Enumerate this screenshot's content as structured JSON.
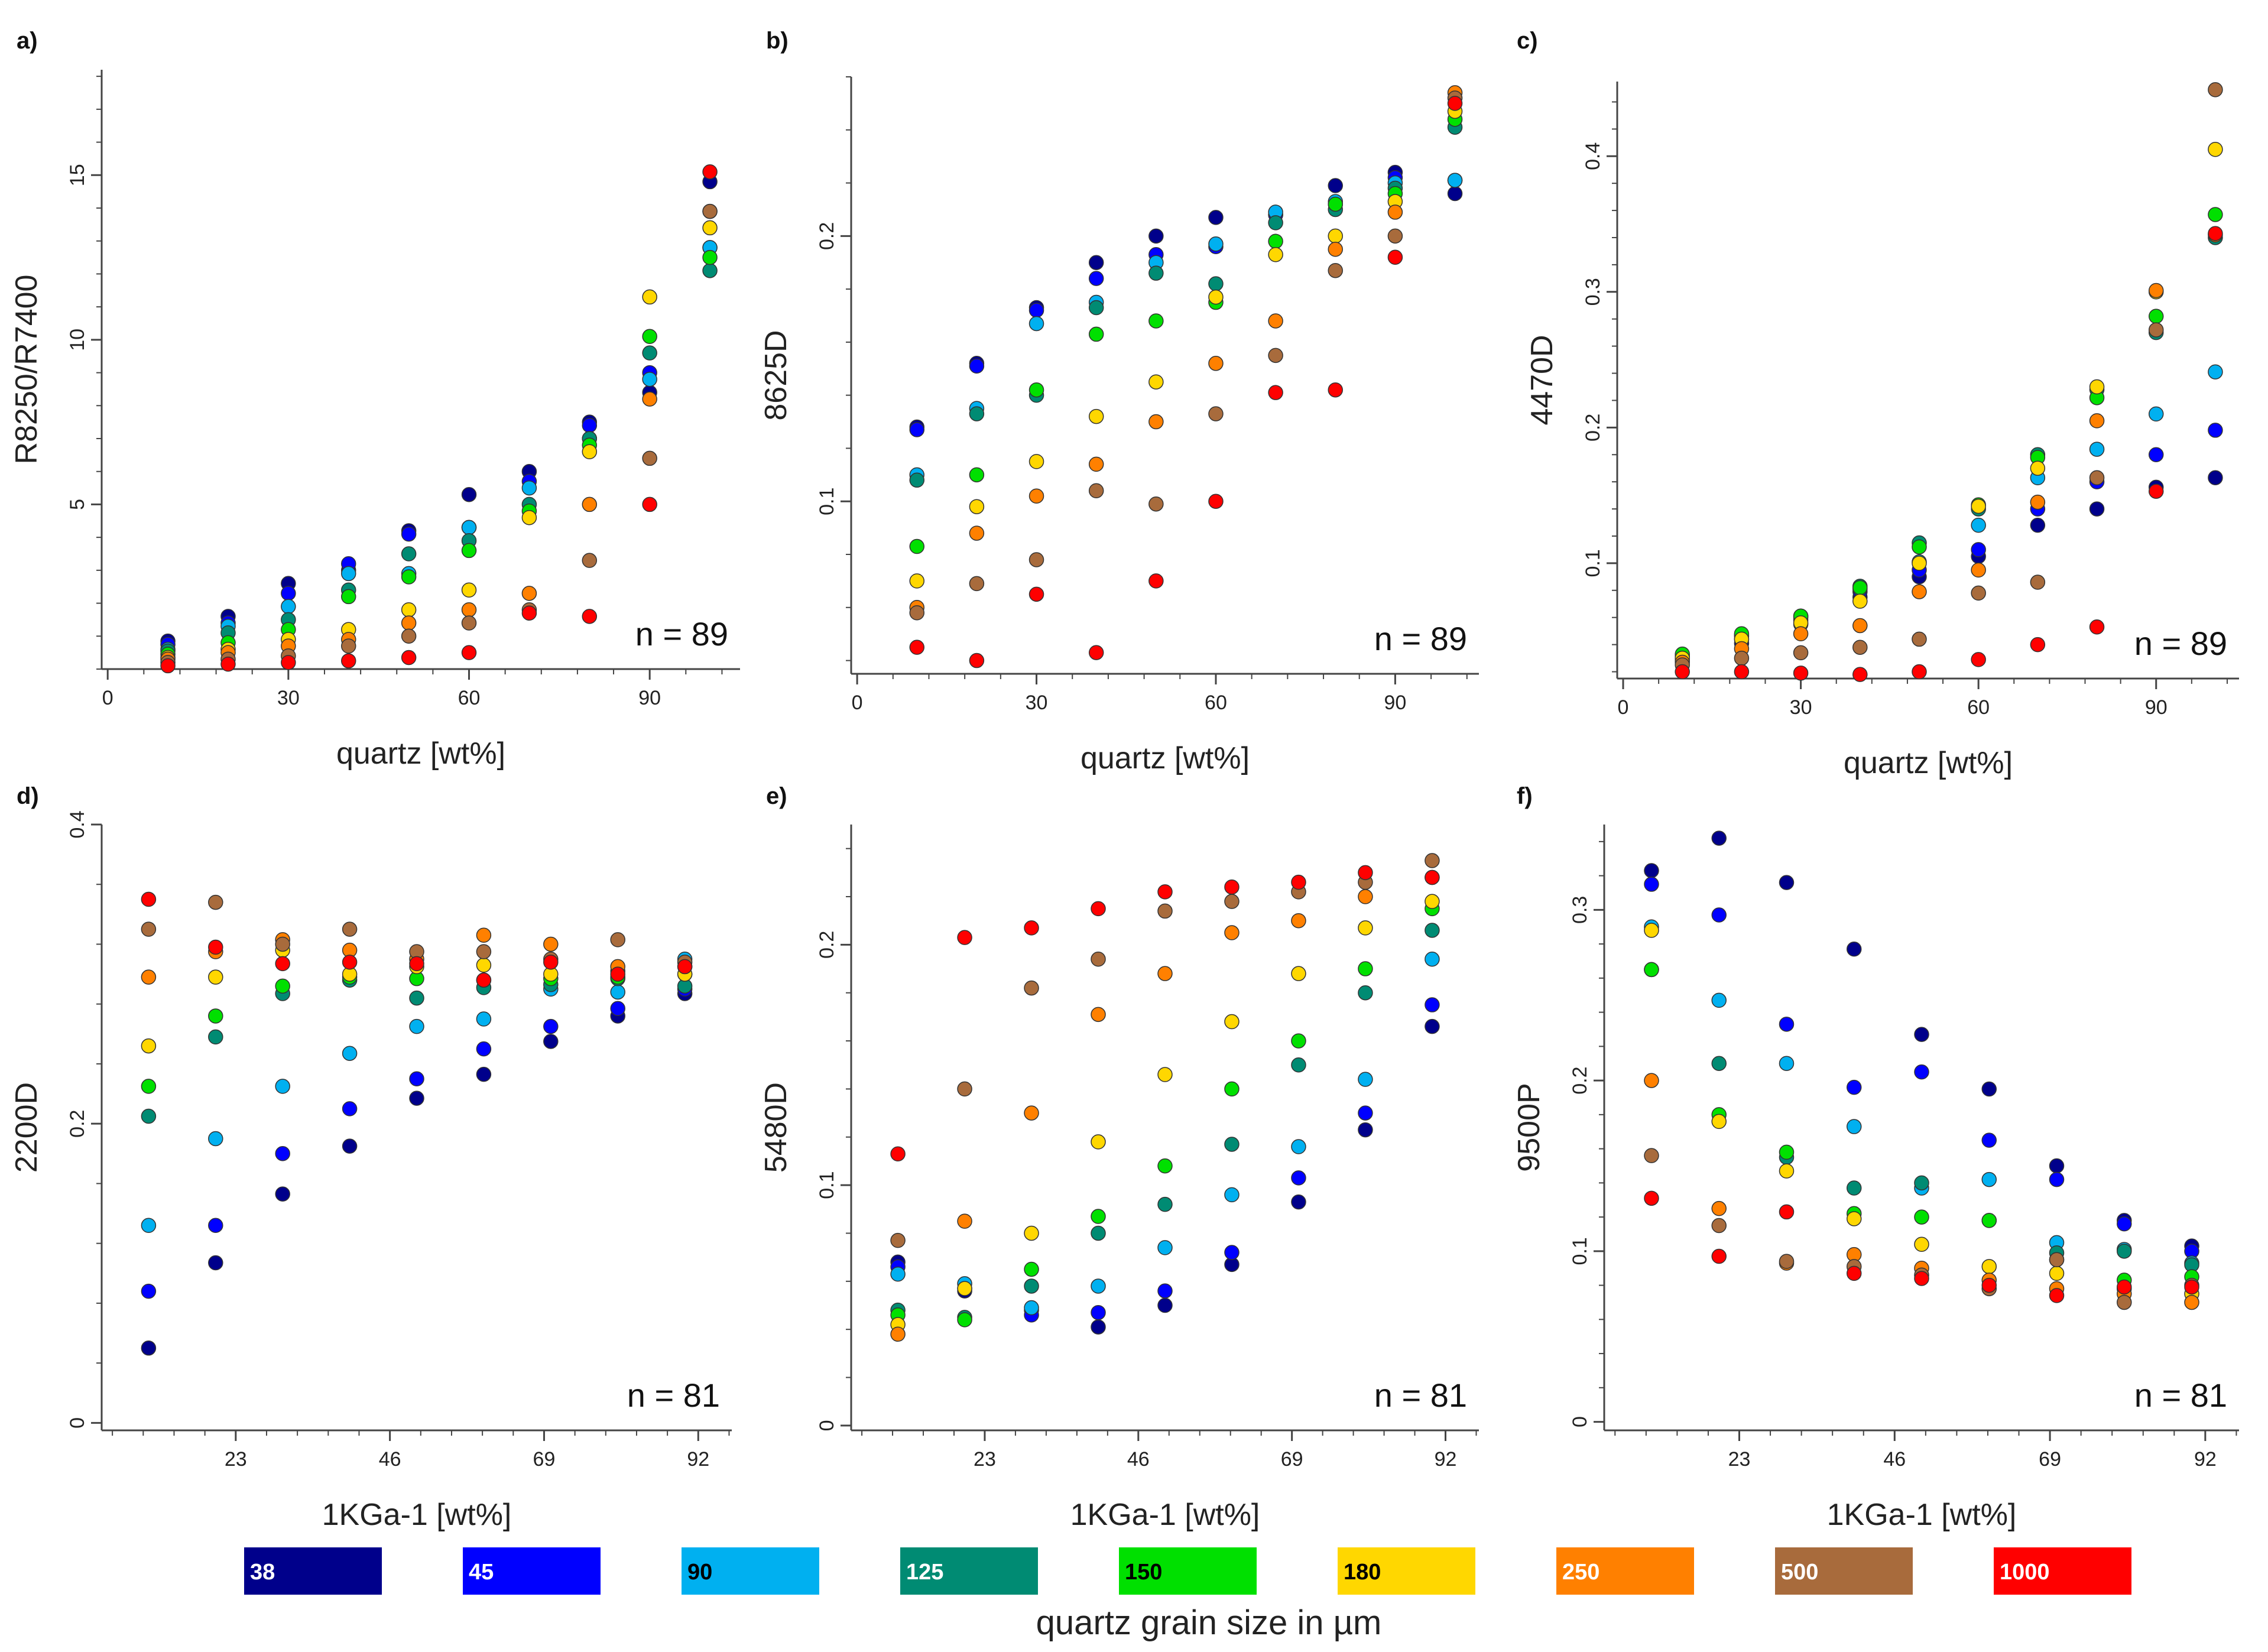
{
  "legend": {
    "title": "quartz grain size in µm",
    "items": [
      {
        "label": "38",
        "color": "#00008B",
        "text_color": "#ffffff"
      },
      {
        "label": "45",
        "color": "#0000FF",
        "text_color": "#ffffff"
      },
      {
        "label": "90",
        "color": "#00B0F0",
        "text_color": "#000000"
      },
      {
        "label": "125",
        "color": "#008B73",
        "text_color": "#ffffff"
      },
      {
        "label": "150",
        "color": "#00E000",
        "text_color": "#000000"
      },
      {
        "label": "180",
        "color": "#FFD700",
        "text_color": "#000000"
      },
      {
        "label": "250",
        "color": "#FF8000",
        "text_color": "#ffffff"
      },
      {
        "label": "500",
        "color": "#A86B3C",
        "text_color": "#ffffff"
      },
      {
        "label": "1000",
        "color": "#FF0000",
        "text_color": "#ffffff"
      }
    ]
  },
  "chart_data": [
    {
      "type": "scatter",
      "panel_label": "a)",
      "xlabel": "quartz [wt%]",
      "ylabel": "R8250/R7400",
      "annotation": "n = 89",
      "xlim": [
        -1,
        105
      ],
      "ylim": [
        0,
        18.2
      ],
      "xticks": [
        0,
        30,
        60,
        90
      ],
      "xtick_labels": [
        "0",
        "30",
        "60",
        "90"
      ],
      "yticks": [
        5,
        10,
        15
      ],
      "ytick_labels": [
        "5",
        "10",
        "15"
      ],
      "x": [
        10,
        20,
        30,
        40,
        50,
        60,
        70,
        80,
        90,
        100
      ],
      "series": [
        {
          "name": "38",
          "values": [
            0.85,
            1.6,
            2.6,
            3.0,
            4.2,
            5.3,
            6.0,
            7.5,
            8.4,
            14.8
          ]
        },
        {
          "name": "45",
          "values": [
            0.75,
            1.4,
            2.3,
            3.2,
            4.1,
            4.3,
            5.7,
            7.4,
            9.0,
            12.8
          ]
        },
        {
          "name": "90",
          "values": [
            0.6,
            1.3,
            1.9,
            2.9,
            2.9,
            4.3,
            5.5,
            7.0,
            8.8,
            12.8
          ]
        },
        {
          "name": "125",
          "values": [
            0.55,
            1.1,
            1.5,
            2.4,
            3.5,
            3.9,
            5.0,
            7.0,
            9.6,
            12.1
          ]
        },
        {
          "name": "150",
          "values": [
            0.45,
            0.8,
            1.2,
            2.2,
            2.8,
            3.6,
            4.8,
            6.8,
            10.1,
            12.5
          ]
        },
        {
          "name": "180",
          "values": [
            0.35,
            0.6,
            0.9,
            1.2,
            1.8,
            2.4,
            4.6,
            6.6,
            11.3,
            13.4
          ]
        },
        {
          "name": "250",
          "values": [
            0.3,
            0.5,
            0.7,
            0.9,
            1.4,
            1.8,
            2.3,
            5.0,
            8.2,
            13.9
          ]
        },
        {
          "name": "500",
          "values": [
            0.2,
            0.3,
            0.4,
            0.7,
            1.0,
            1.4,
            1.8,
            3.3,
            6.4,
            13.9
          ]
        },
        {
          "name": "1000",
          "values": [
            0.1,
            0.15,
            0.2,
            0.25,
            0.35,
            0.5,
            1.7,
            1.6,
            5.0,
            15.1
          ]
        }
      ]
    },
    {
      "type": "scatter",
      "panel_label": "b)",
      "xlabel": "quartz [wt%]",
      "ylabel": "8625D",
      "annotation": "n = 89",
      "xlim": [
        -1,
        104
      ],
      "ylim": [
        0.035,
        0.26
      ],
      "xticks": [
        0,
        30,
        60,
        90
      ],
      "xtick_labels": [
        "0",
        "30",
        "60",
        "90"
      ],
      "yticks": [
        0.1,
        0.2
      ],
      "ytick_labels": [
        "0.1",
        "0.2"
      ],
      "x": [
        10,
        20,
        30,
        40,
        50,
        60,
        70,
        80,
        90,
        100
      ],
      "series": [
        {
          "name": "38",
          "values": [
            0.128,
            0.152,
            0.173,
            0.19,
            0.2,
            0.207,
            0.208,
            0.219,
            0.224,
            0.216
          ]
        },
        {
          "name": "45",
          "values": [
            0.127,
            0.151,
            0.172,
            0.184,
            0.193,
            0.196,
            0.208,
            0.212,
            0.222,
            0.221
          ]
        },
        {
          "name": "90",
          "values": [
            0.11,
            0.135,
            0.167,
            0.175,
            0.19,
            0.197,
            0.209,
            0.213,
            0.22,
            0.221
          ]
        },
        {
          "name": "125",
          "values": [
            0.108,
            0.133,
            0.14,
            0.173,
            0.186,
            0.182,
            0.205,
            0.21,
            0.218,
            0.241
          ]
        },
        {
          "name": "150",
          "values": [
            0.083,
            0.11,
            0.142,
            0.163,
            0.168,
            0.175,
            0.198,
            0.212,
            0.216,
            0.244
          ]
        },
        {
          "name": "180",
          "values": [
            0.07,
            0.098,
            0.115,
            0.132,
            0.145,
            0.177,
            0.193,
            0.2,
            0.213,
            0.247
          ]
        },
        {
          "name": "250",
          "values": [
            0.06,
            0.088,
            0.102,
            0.114,
            0.13,
            0.152,
            0.168,
            0.195,
            0.209,
            0.254
          ]
        },
        {
          "name": "500",
          "values": [
            0.058,
            0.069,
            0.078,
            0.104,
            0.099,
            0.133,
            0.155,
            0.187,
            0.2,
            0.252
          ]
        },
        {
          "name": "1000",
          "values": [
            0.045,
            0.04,
            0.065,
            0.043,
            0.07,
            0.1,
            0.141,
            0.142,
            0.192,
            0.25
          ]
        }
      ]
    },
    {
      "type": "scatter",
      "panel_label": "c)",
      "xlabel": "quartz [wt%]",
      "ylabel": "4470D",
      "annotation": "n = 89",
      "xlim": [
        -1,
        104
      ],
      "ylim": [
        0.015,
        0.455
      ],
      "xticks": [
        0,
        30,
        60,
        90
      ],
      "xtick_labels": [
        "0",
        "30",
        "60",
        "90"
      ],
      "yticks": [
        0.1,
        0.2,
        0.3,
        0.4
      ],
      "ytick_labels": [
        "0.1",
        "0.2",
        "0.3",
        "0.4"
      ],
      "x": [
        10,
        20,
        30,
        40,
        50,
        60,
        70,
        80,
        90,
        100
      ],
      "series": [
        {
          "name": "38",
          "values": [
            0.028,
            0.041,
            0.055,
            0.075,
            0.09,
            0.105,
            0.128,
            0.14,
            0.156,
            0.163
          ]
        },
        {
          "name": "45",
          "values": [
            0.03,
            0.044,
            0.058,
            0.079,
            0.095,
            0.11,
            0.14,
            0.16,
            0.18,
            0.198
          ]
        },
        {
          "name": "90",
          "values": [
            0.031,
            0.046,
            0.06,
            0.081,
            0.101,
            0.128,
            0.163,
            0.184,
            0.21,
            0.241
          ]
        },
        {
          "name": "125",
          "values": [
            0.032,
            0.047,
            0.061,
            0.083,
            0.115,
            0.14,
            0.18,
            0.228,
            0.27,
            0.34
          ]
        },
        {
          "name": "150",
          "values": [
            0.033,
            0.048,
            0.061,
            0.082,
            0.112,
            0.143,
            0.178,
            0.222,
            0.282,
            0.357
          ]
        },
        {
          "name": "180",
          "values": [
            0.03,
            0.044,
            0.056,
            0.072,
            0.1,
            0.142,
            0.17,
            0.23,
            0.3,
            0.405
          ]
        },
        {
          "name": "250",
          "values": [
            0.027,
            0.037,
            0.048,
            0.054,
            0.079,
            0.095,
            0.145,
            0.205,
            0.301,
            0.342
          ]
        },
        {
          "name": "500",
          "values": [
            0.025,
            0.03,
            0.034,
            0.038,
            0.044,
            0.078,
            0.086,
            0.163,
            0.272,
            0.449
          ]
        },
        {
          "name": "1000",
          "values": [
            0.02,
            0.02,
            0.019,
            0.018,
            0.02,
            0.029,
            0.04,
            0.053,
            0.153,
            0.343
          ]
        }
      ]
    },
    {
      "type": "scatter",
      "panel_label": "d)",
      "xlabel": "1KGa-1 [wt%]",
      "ylabel": "2200D",
      "annotation": "n = 81",
      "xlim": [
        3,
        97
      ],
      "ylim": [
        -0.005,
        0.4
      ],
      "xticks": [
        23,
        46,
        69,
        92
      ],
      "xtick_labels": [
        "23",
        "46",
        "69",
        "92"
      ],
      "yticks": [
        0,
        0.2,
        0.4
      ],
      "ytick_labels": [
        "0",
        "0.2",
        "0.4"
      ],
      "x": [
        10,
        20,
        30,
        40,
        50,
        60,
        70,
        80,
        90
      ],
      "series": [
        {
          "name": "38",
          "values": [
            0.05,
            0.107,
            0.153,
            0.185,
            0.217,
            0.233,
            0.255,
            0.272,
            0.287
          ]
        },
        {
          "name": "45",
          "values": [
            0.088,
            0.132,
            0.18,
            0.21,
            0.23,
            0.25,
            0.265,
            0.277,
            0.29
          ]
        },
        {
          "name": "90",
          "values": [
            0.132,
            0.19,
            0.225,
            0.247,
            0.265,
            0.27,
            0.29,
            0.288,
            0.31
          ]
        },
        {
          "name": "125",
          "values": [
            0.205,
            0.258,
            0.287,
            0.296,
            0.284,
            0.291,
            0.293,
            0.297,
            0.292
          ]
        },
        {
          "name": "150",
          "values": [
            0.225,
            0.272,
            0.292,
            0.298,
            0.297,
            0.296,
            0.297,
            0.298,
            0.3
          ]
        },
        {
          "name": "180",
          "values": [
            0.252,
            0.298,
            0.316,
            0.3,
            0.305,
            0.306,
            0.3,
            0.302,
            0.3
          ]
        },
        {
          "name": "250",
          "values": [
            0.298,
            0.315,
            0.323,
            0.316,
            0.31,
            0.326,
            0.32,
            0.305,
            0.305
          ]
        },
        {
          "name": "500",
          "values": [
            0.33,
            0.348,
            0.32,
            0.33,
            0.315,
            0.315,
            0.31,
            0.323,
            0.308
          ]
        },
        {
          "name": "1000",
          "values": [
            0.35,
            0.318,
            0.307,
            0.308,
            0.307,
            0.296,
            0.308,
            0.3,
            0.305
          ]
        }
      ]
    },
    {
      "type": "scatter",
      "panel_label": "e)",
      "xlabel": "1KGa-1 [wt%]",
      "ylabel": "5480D",
      "annotation": "n = 81",
      "xlim": [
        3,
        97
      ],
      "ylim": [
        -0.002,
        0.25
      ],
      "xticks": [
        23,
        46,
        69,
        92
      ],
      "xtick_labels": [
        "23",
        "46",
        "69",
        "92"
      ],
      "yticks": [
        0,
        0.1,
        0.2
      ],
      "ytick_labels": [
        "0",
        "0.1",
        "0.2"
      ],
      "x": [
        10,
        20,
        30,
        40,
        50,
        60,
        70,
        80,
        90
      ],
      "series": [
        {
          "name": "38",
          "values": [
            0.068,
            0.056,
            0.048,
            0.041,
            0.05,
            0.067,
            0.093,
            0.123,
            0.166
          ]
        },
        {
          "name": "45",
          "values": [
            0.066,
            0.057,
            0.046,
            0.047,
            0.056,
            0.072,
            0.103,
            0.13,
            0.175
          ]
        },
        {
          "name": "90",
          "values": [
            0.063,
            0.059,
            0.049,
            0.058,
            0.074,
            0.096,
            0.116,
            0.144,
            0.194
          ]
        },
        {
          "name": "125",
          "values": [
            0.048,
            0.045,
            0.058,
            0.08,
            0.092,
            0.117,
            0.15,
            0.18,
            0.206
          ]
        },
        {
          "name": "150",
          "values": [
            0.046,
            0.044,
            0.065,
            0.087,
            0.108,
            0.14,
            0.16,
            0.19,
            0.215
          ]
        },
        {
          "name": "180",
          "values": [
            0.042,
            0.057,
            0.08,
            0.118,
            0.146,
            0.168,
            0.188,
            0.207,
            0.218
          ]
        },
        {
          "name": "250",
          "values": [
            0.038,
            0.085,
            0.13,
            0.171,
            0.188,
            0.205,
            0.21,
            0.22,
            0.228
          ]
        },
        {
          "name": "500",
          "values": [
            0.077,
            0.14,
            0.182,
            0.194,
            0.214,
            0.218,
            0.222,
            0.226,
            0.235
          ]
        },
        {
          "name": "1000",
          "values": [
            0.113,
            0.203,
            0.207,
            0.215,
            0.222,
            0.224,
            0.226,
            0.23,
            0.228
          ]
        }
      ]
    },
    {
      "type": "scatter",
      "panel_label": "f)",
      "xlabel": "1KGa-1 [wt%]",
      "ylabel": "9500P",
      "annotation": "n = 81",
      "xlim": [
        3,
        97
      ],
      "ylim": [
        -0.005,
        0.35
      ],
      "xticks": [
        23,
        46,
        69,
        92
      ],
      "xtick_labels": [
        "23",
        "46",
        "69",
        "92"
      ],
      "yticks": [
        0,
        0.1,
        0.2,
        0.3
      ],
      "ytick_labels": [
        "0",
        "0.1",
        "0.2",
        "0.3"
      ],
      "x": [
        10,
        20,
        30,
        40,
        50,
        60,
        70,
        80,
        90
      ],
      "series": [
        {
          "name": "38",
          "values": [
            0.323,
            0.342,
            0.316,
            0.277,
            0.227,
            0.195,
            0.15,
            0.118,
            0.103
          ]
        },
        {
          "name": "45",
          "values": [
            0.315,
            0.297,
            0.233,
            0.196,
            0.205,
            0.165,
            0.142,
            0.116,
            0.1
          ]
        },
        {
          "name": "90",
          "values": [
            0.29,
            0.247,
            0.21,
            0.173,
            0.137,
            0.142,
            0.105,
            0.101,
            0.093
          ]
        },
        {
          "name": "125",
          "values": [
            0.265,
            0.21,
            0.155,
            0.137,
            0.14,
            0.118,
            0.099,
            0.1,
            0.092
          ]
        },
        {
          "name": "150",
          "values": [
            0.265,
            0.18,
            0.158,
            0.122,
            0.12,
            0.118,
            0.095,
            0.083,
            0.085
          ]
        },
        {
          "name": "180",
          "values": [
            0.288,
            0.176,
            0.147,
            0.119,
            0.104,
            0.091,
            0.087,
            0.078,
            0.075
          ]
        },
        {
          "name": "250",
          "values": [
            0.2,
            0.125,
            0.093,
            0.098,
            0.09,
            0.083,
            0.078,
            0.075,
            0.07
          ]
        },
        {
          "name": "500",
          "values": [
            0.156,
            0.115,
            0.094,
            0.091,
            0.086,
            0.078,
            0.095,
            0.07,
            0.08
          ]
        },
        {
          "name": "1000",
          "values": [
            0.131,
            0.097,
            0.123,
            0.087,
            0.084,
            0.08,
            0.074,
            0.079,
            0.079
          ]
        }
      ]
    }
  ]
}
